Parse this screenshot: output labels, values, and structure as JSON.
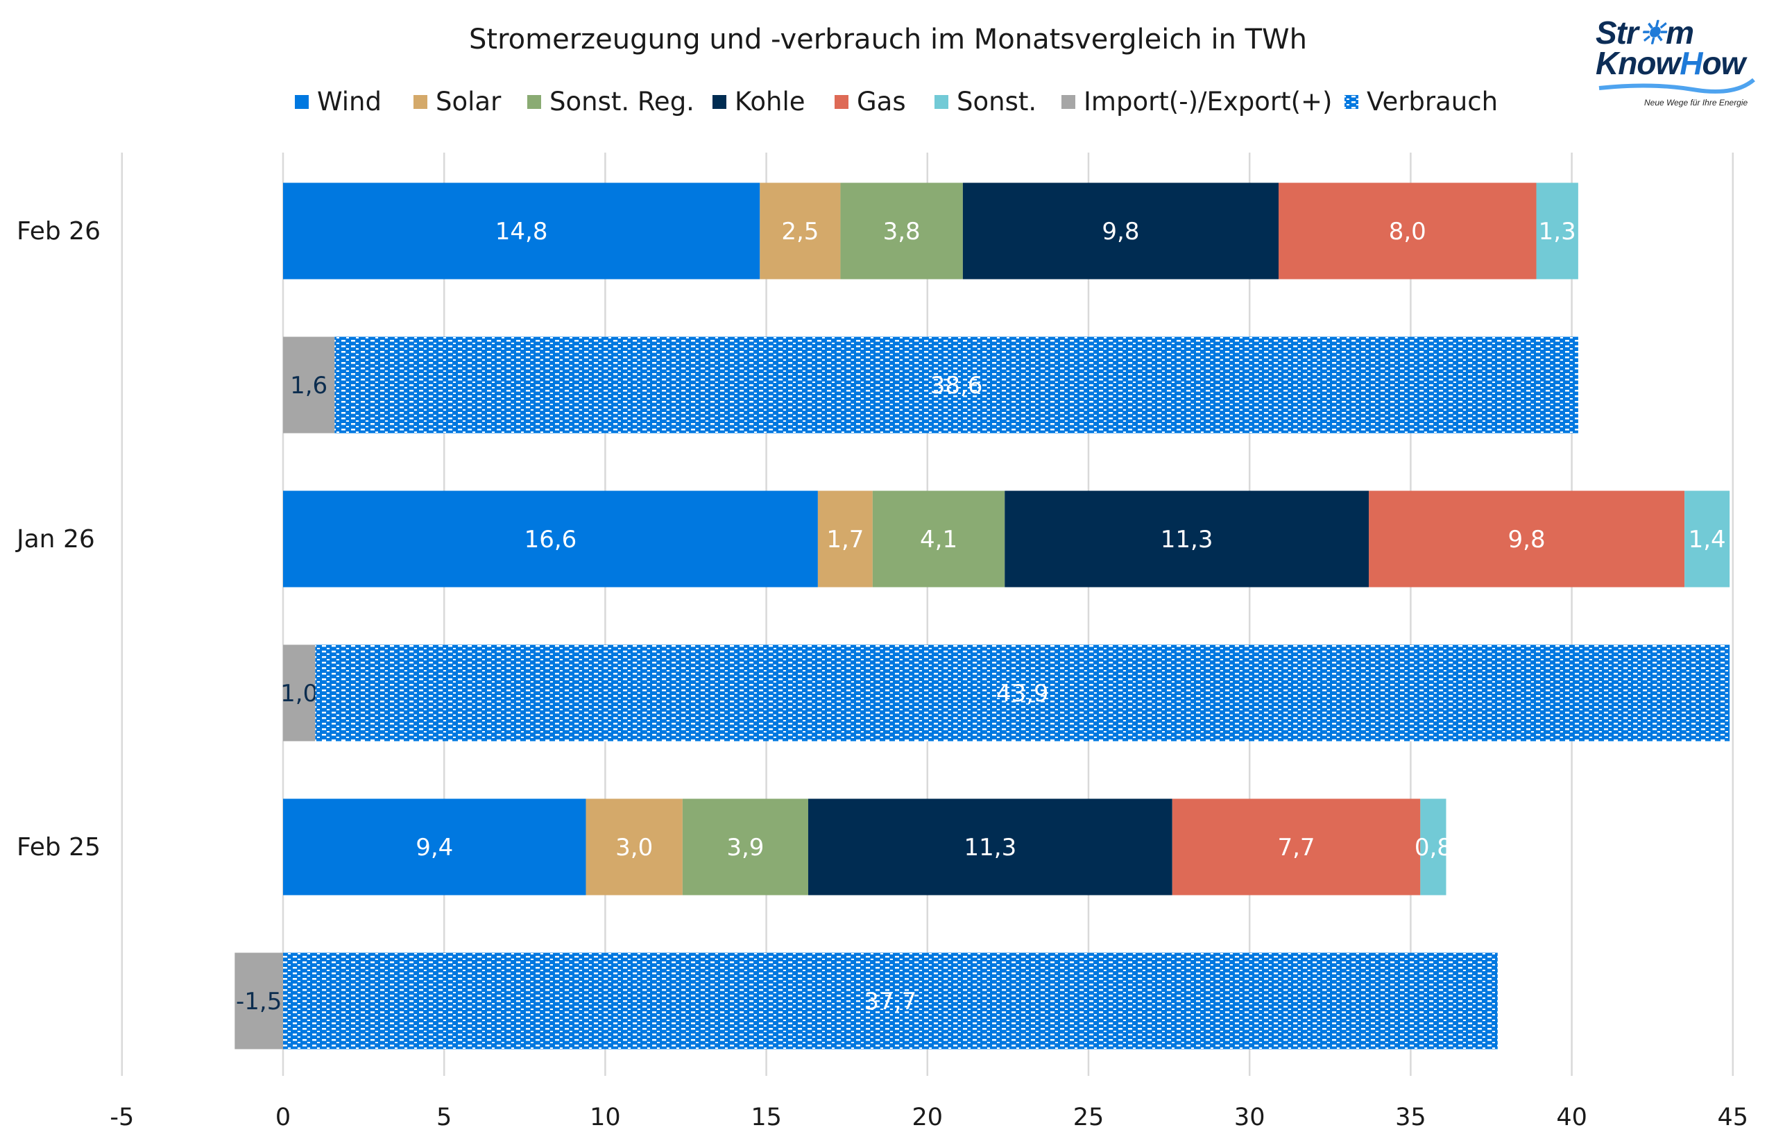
{
  "chart_data": {
    "type": "bar",
    "orientation": "horizontal",
    "stacked": true,
    "title": "Stromerzeugung und -verbrauch im Monatsvergleich in TWh",
    "xlim": [
      -5,
      45
    ],
    "xticks": [
      -5,
      0,
      5,
      10,
      15,
      20,
      25,
      30,
      35,
      40,
      45
    ],
    "grid": true,
    "legend_position": "top",
    "legend": [
      {
        "name": "Wind",
        "color": "#0078e0"
      },
      {
        "name": "Solar",
        "color": "#d4a96a"
      },
      {
        "name": "Sonst. Reg.",
        "color": "#8aab73"
      },
      {
        "name": "Kohle",
        "color": "#002c52"
      },
      {
        "name": "Gas",
        "color": "#de6a56"
      },
      {
        "name": "Sonst.",
        "color": "#72cad6"
      },
      {
        "name": "Import(-)/Export(+)",
        "color": "#a6a6a6"
      },
      {
        "name": "Verbrauch",
        "color": "#0078e0",
        "pattern": "dashes"
      }
    ],
    "groups": [
      {
        "label": "Feb 26",
        "generation": [
          14.8,
          2.5,
          3.8,
          9.8,
          8.0,
          1.3
        ],
        "generation_labels": [
          "14,8",
          "2,5",
          "3,8",
          "9,8",
          "8,0",
          "1,3"
        ],
        "import_export": 1.6,
        "import_export_label": "1,6",
        "consumption": 38.6,
        "consumption_label": "38,6"
      },
      {
        "label": "Jan 26",
        "generation": [
          16.6,
          1.7,
          4.1,
          11.3,
          9.8,
          1.4
        ],
        "generation_labels": [
          "16,6",
          "1,7",
          "4,1",
          "11,3",
          "9,8",
          "1,4"
        ],
        "import_export": 1.0,
        "import_export_label": "1,0",
        "consumption": 43.9,
        "consumption_label": "43,9"
      },
      {
        "label": "Feb 25",
        "generation": [
          9.4,
          3.0,
          3.9,
          11.3,
          7.7,
          0.8
        ],
        "generation_labels": [
          "9,4",
          "3,0",
          "3,9",
          "11,3",
          "7,7",
          "0,8"
        ],
        "import_export": -1.5,
        "import_export_label": "-1,5",
        "consumption": 37.7,
        "consumption_label": "37,7"
      }
    ]
  },
  "logo": {
    "line1a": "Str",
    "line1b": "m",
    "line2a": "Know",
    "line2b": "H",
    "line2c": "ow",
    "tagline": "Neue Wege für Ihre Energie"
  }
}
